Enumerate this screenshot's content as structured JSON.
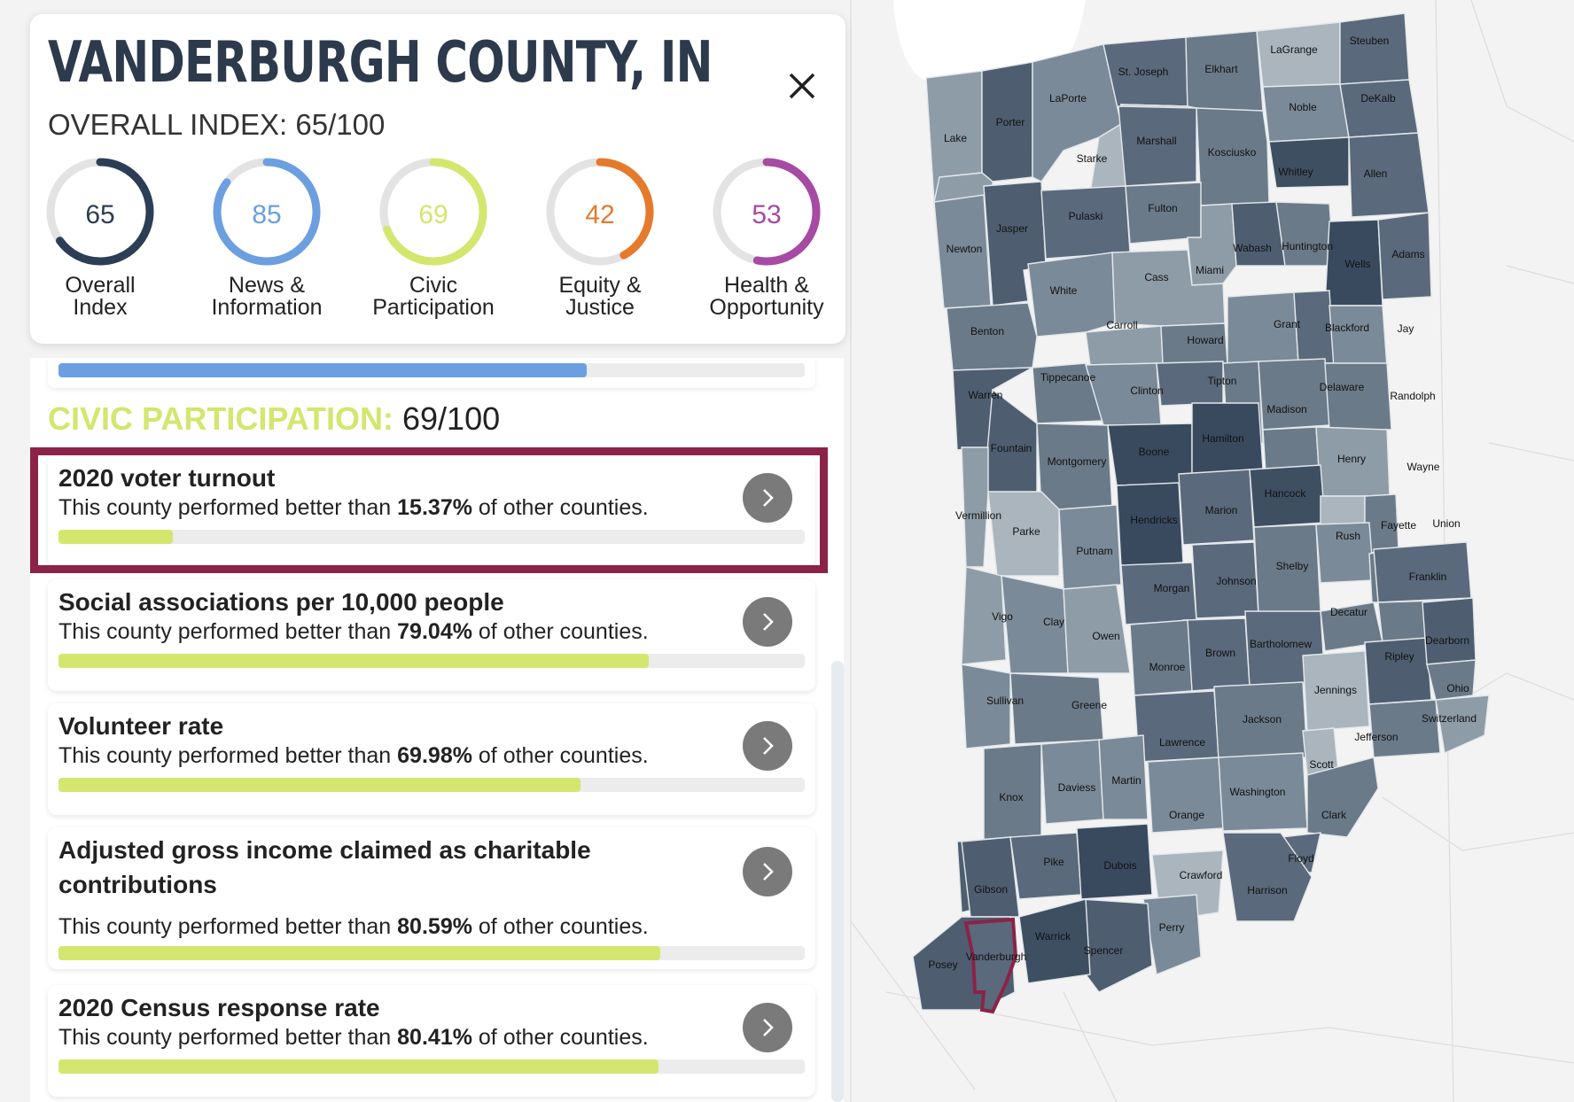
{
  "county": {
    "title": "VANDERBURGH COUNTY, IN",
    "overall_index": "OVERALL INDEX: 65/100"
  },
  "gauges": [
    {
      "value": 65,
      "label1": "Overall",
      "label2": "Index",
      "color": "#2c3e55"
    },
    {
      "value": 85,
      "label1": "News &",
      "label2": "Information",
      "color": "#6b9fe0"
    },
    {
      "value": 69,
      "label1": "Civic",
      "label2": "Participation",
      "color": "#d4e66e"
    },
    {
      "value": 42,
      "label1": "Equity &",
      "label2": "Justice",
      "color": "#e57a2c"
    },
    {
      "value": 53,
      "label1": "Health &",
      "label2": "Opportunity",
      "color": "#a64aa3"
    }
  ],
  "top_bar": {
    "percent": 70.8,
    "color": "#6b9fe0"
  },
  "section": {
    "label": "CIVIC PARTICIPATION:",
    "score": " 69/100",
    "color": "#d4e66e"
  },
  "metrics": [
    {
      "title": "2020 voter turnout",
      "prefix": "This county performed better than ",
      "percent": "15.37%",
      "suffix": " of other counties.",
      "value": 15.37
    },
    {
      "title": "Social associations per 10,000 people",
      "prefix": "This county performed better than ",
      "percent": "79.04%",
      "suffix": " of other counties.",
      "value": 79.04
    },
    {
      "title": "Volunteer rate",
      "prefix": "This county performed better than ",
      "percent": "69.98%",
      "suffix": " of other counties.",
      "value": 69.98
    },
    {
      "title": "Adjusted gross income claimed as charitable contributions",
      "prefix": "This county performed better than ",
      "percent": "80.59%",
      "suffix": " of other counties.",
      "value": 80.59
    },
    {
      "title": "2020 Census response rate",
      "prefix": "This county performed better than ",
      "percent": "80.41%",
      "suffix": " of other counties.",
      "value": 80.41
    }
  ],
  "icons": {
    "close": "close-icon",
    "chevron": "chevron-right-icon"
  },
  "map": {
    "selected_county": "Vanderburgh",
    "highlight_color": "#8b2348",
    "counties": [
      "LaGrange",
      "Steuben",
      "St. Joseph",
      "Elkhart",
      "LaPorte",
      "Noble",
      "DeKalb",
      "Lake",
      "Porter",
      "Marshall",
      "Kosciusko",
      "Starke",
      "Whitley",
      "Allen",
      "Fulton",
      "Pulaski",
      "Jasper",
      "Newton",
      "Wabash",
      "Huntington",
      "Miami",
      "Cass",
      "Wells",
      "Adams",
      "White",
      "Grant",
      "Blackford",
      "Jay",
      "Benton",
      "Carroll",
      "Howard",
      "Tippecanoe",
      "Tipton",
      "Delaware",
      "Randolph",
      "Warren",
      "Clinton",
      "Madison",
      "Hamilton",
      "Boone",
      "Fountain",
      "Montgomery",
      "Henry",
      "Wayne",
      "Hancock",
      "Vermillion",
      "Parke",
      "Hendricks",
      "Marion",
      "Fayette",
      "Union",
      "Rush",
      "Putnam",
      "Shelby",
      "Johnson",
      "Morgan",
      "Franklin",
      "Vigo",
      "Clay",
      "Owen",
      "Decatur",
      "Bartholomew",
      "Dearborn",
      "Brown",
      "Monroe",
      "Ripley",
      "Jennings",
      "Ohio",
      "Sullivan",
      "Greene",
      "Jackson",
      "Switzerland",
      "Lawrence",
      "Jefferson",
      "Scott",
      "Knox",
      "Daviess",
      "Martin",
      "Washington",
      "Orange",
      "Clark",
      "Floyd",
      "Pike",
      "Dubois",
      "Crawford",
      "Gibson",
      "Harrison",
      "Perry",
      "Warrick",
      "Spencer",
      "Posey",
      "Vanderburgh"
    ]
  }
}
